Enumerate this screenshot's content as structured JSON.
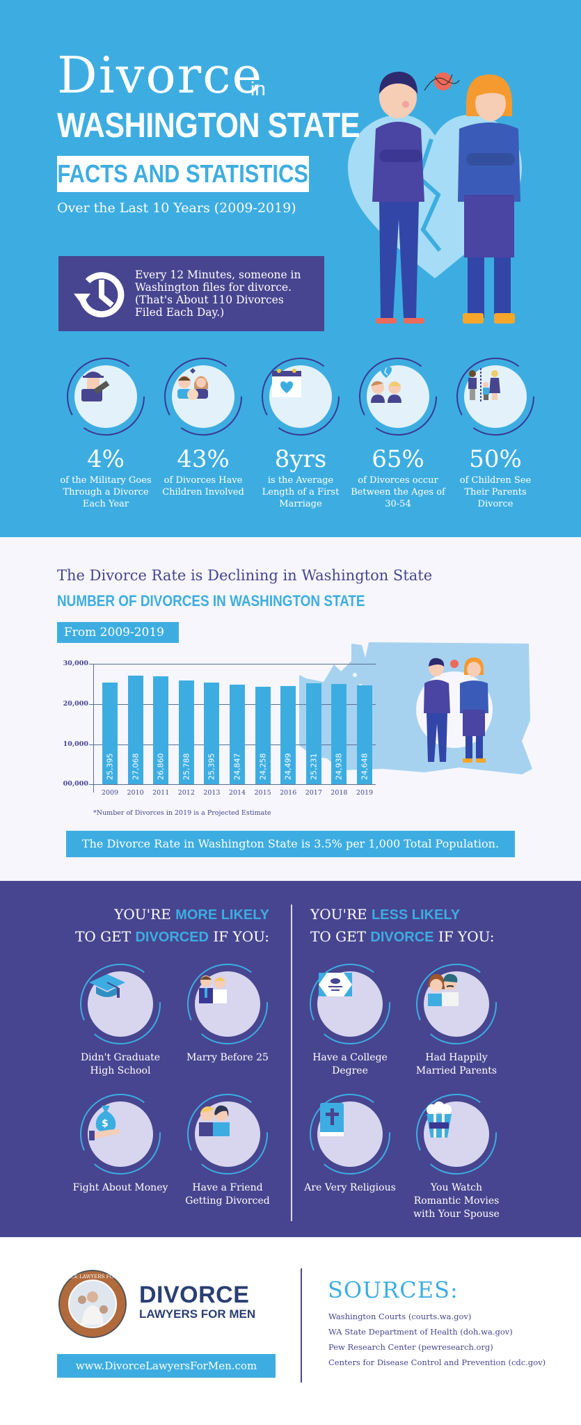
{
  "hero": {
    "title_main": "Divorce",
    "title_in": "in",
    "title_state": "WASHINGTON STATE",
    "facts_label": "FACTS AND STATISTICS",
    "subtitle": "Over the Last 10 Years (2009-2019)",
    "callout": {
      "icon": "clock-history-icon",
      "text": "Every 12 Minutes, someone in Washington files for divorce. (That's About 110 Divorces Filed Each Day.)"
    },
    "illustration": "upset-couple-broken-heart"
  },
  "stats": [
    {
      "icon": "soldier-icon",
      "value": "4%",
      "desc": "of the Military Goes Through a Divorce Each Year"
    },
    {
      "icon": "family-icon",
      "value": "43%",
      "desc": "of Divorces Have Children Involved"
    },
    {
      "icon": "calendar-heart-icon",
      "value": "8yrs",
      "desc": "is the Average Length of a First Marriage"
    },
    {
      "icon": "broken-heart-couple-icon",
      "value": "65%",
      "desc": "of Divorces occur Between the Ages of 30-54"
    },
    {
      "icon": "split-family-icon",
      "value": "50%",
      "desc": "of Children See Their Parents Divorce"
    }
  ],
  "chart_section": {
    "heading": "The Divorce Rate is Declining in Washington State",
    "subheading": "NUMBER OF DIVORCES IN WASHINGTON STATE",
    "range_label": "From 2009-2019",
    "footnote": "*Number of Divorces in 2019 is a Projected Estimate",
    "rate_note": "The Divorce Rate in Washington State is 3.5% per 1,000 Total Population."
  },
  "chart_data": {
    "type": "bar",
    "title": "NUMBER OF DIVORCES IN WASHINGTON STATE",
    "subtitle": "From 2009-2019",
    "xlabel": "",
    "ylabel": "",
    "categories": [
      "2009",
      "2010",
      "2011",
      "2012",
      "2013",
      "2014",
      "2015",
      "2016",
      "2017",
      "2018",
      "2019"
    ],
    "values": [
      25395,
      27068,
      26860,
      25788,
      25395,
      24847,
      24258,
      24499,
      25231,
      24938,
      24648
    ],
    "value_labels": [
      "25,395",
      "27,068",
      "26,860",
      "25,788",
      "25,395",
      "24,847",
      "24,258",
      "24,499",
      "25,231",
      "24,938",
      "24,648"
    ],
    "yticks": [
      "00,000",
      "10,000",
      "20,000",
      "30,000"
    ],
    "ylim": [
      0,
      30000
    ],
    "grid": true,
    "bar_color": "#3dade1",
    "annotations": [
      "*Number of Divorces in 2019 is a Projected Estimate"
    ]
  },
  "likely": {
    "more": {
      "line1_pre": "YOU'RE ",
      "line1_hl": "MORE LIKELY",
      "line2_pre": "TO GET ",
      "line2_hl": "DIVORCED",
      "line2_post": " IF YOU:",
      "items": [
        {
          "icon": "graduation-cap-icon",
          "label": "Didn't Graduate High School"
        },
        {
          "icon": "bride-groom-icon",
          "label": "Marry Before 25"
        },
        {
          "icon": "money-bag-icon",
          "label": "Fight About Money"
        },
        {
          "icon": "friends-icon",
          "label": "Have a Friend Getting Divorced"
        }
      ]
    },
    "less": {
      "line1_pre": "YOU'RE ",
      "line1_hl": "LESS LIKELY",
      "line2_pre": "TO GET ",
      "line2_hl": "DIVORCE",
      "line2_post": " IF YOU:",
      "items": [
        {
          "icon": "diploma-icon",
          "label": "Have a College Degree"
        },
        {
          "icon": "married-parents-icon",
          "label": "Had Happily Married Parents"
        },
        {
          "icon": "bible-icon",
          "label": "Are Very Religious"
        },
        {
          "icon": "popcorn-icon",
          "label": "You Watch Romantic Movies with Your Spouse"
        }
      ]
    }
  },
  "footer": {
    "seal_text": "DIVORCE LAWYERS FOR MEN",
    "brand_line1": "DIVORCE",
    "brand_line2": "LAWYERS FOR MEN",
    "url": "www.DivorceLawyersForMen.com",
    "sources_title": "SOURCES:",
    "sources": [
      "Washington Courts (courts.wa.gov)",
      "WA State Department of Health (doh.wa.gov)",
      "Pew Research Center (pewresearch.org)",
      "Centers for Disease Control and Prevention (cdc.gov)"
    ]
  },
  "colors": {
    "sky_blue": "#3dade1",
    "indigo": "#47458f",
    "pale_bg": "#f6f6fc",
    "navy_brand": "#2a3f72"
  }
}
